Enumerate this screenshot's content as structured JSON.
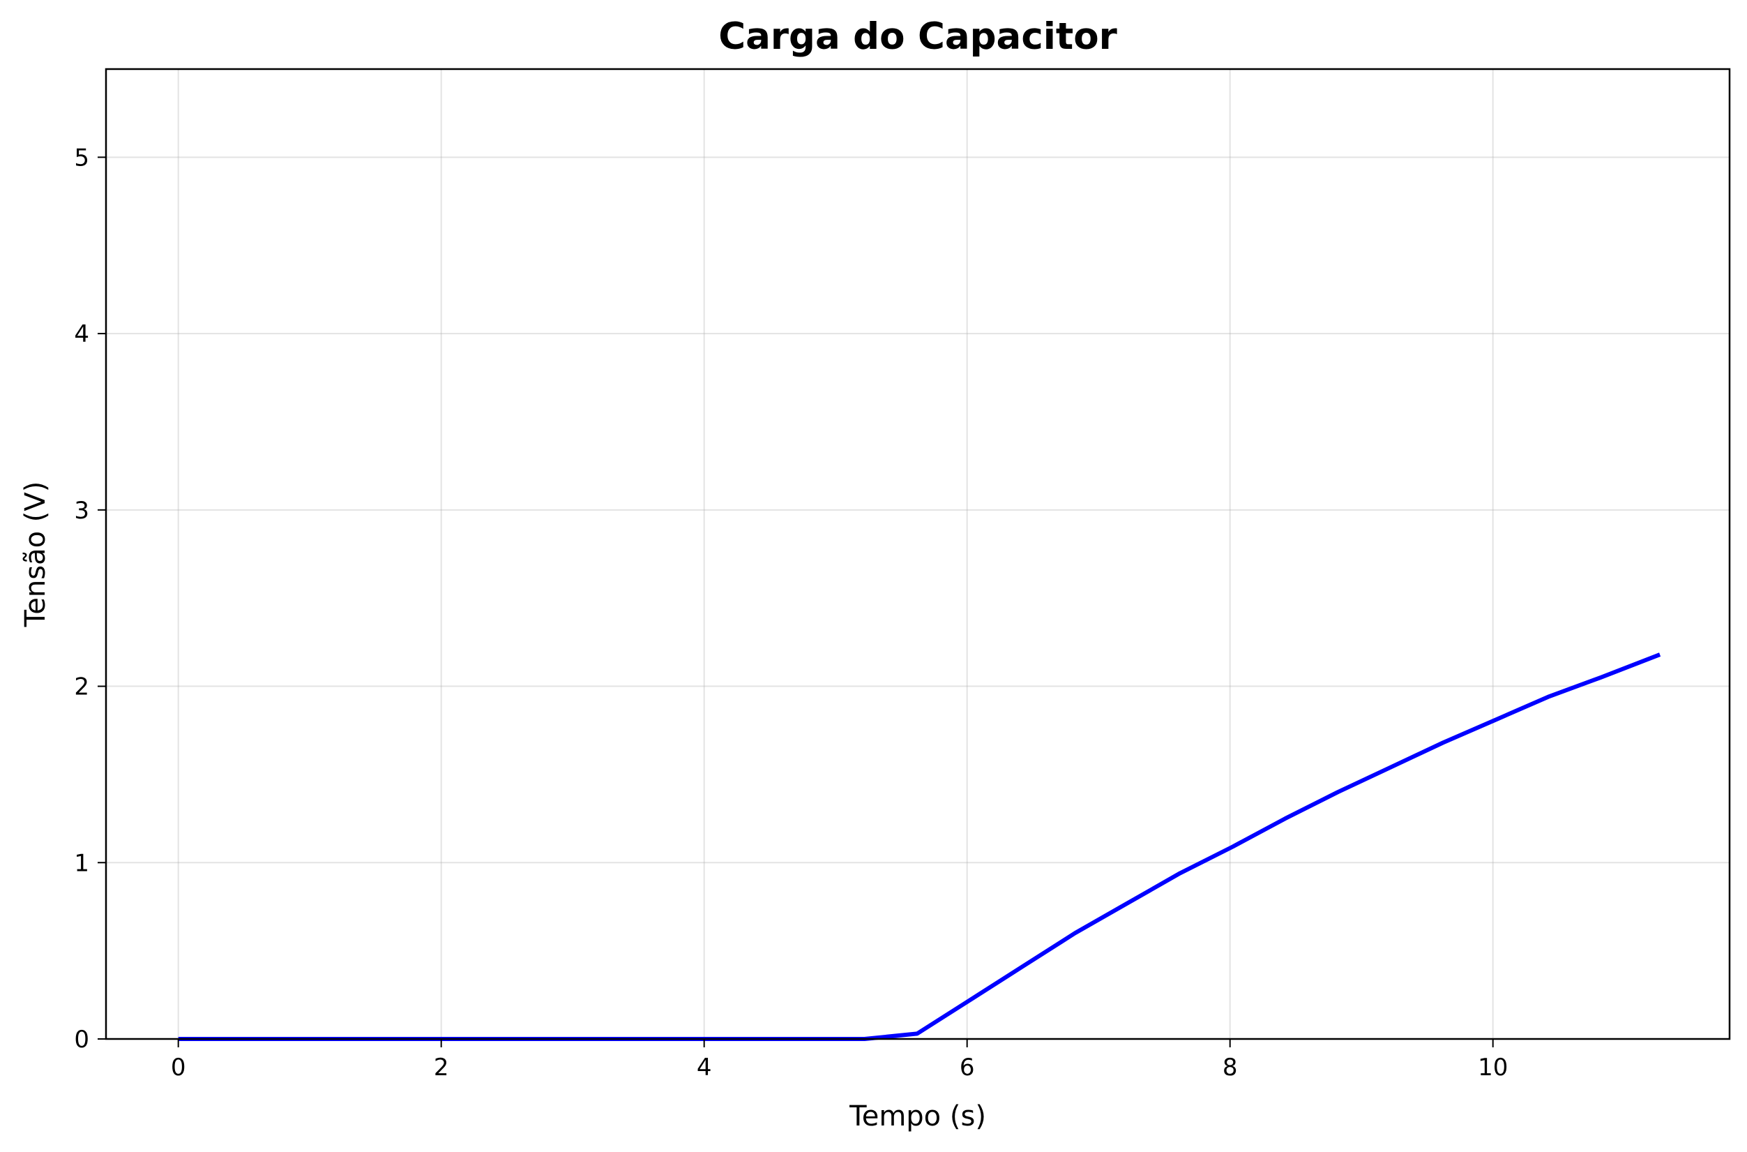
{
  "chart_data": {
    "type": "line",
    "title": "Carga do Capacitor",
    "xlabel": "Tempo (s)",
    "ylabel": "Tensão (V)",
    "xlim": [
      -0.55,
      11.8
    ],
    "ylim": [
      0,
      5.5
    ],
    "xticks": [
      0,
      2,
      4,
      6,
      8,
      10
    ],
    "yticks": [
      0,
      1,
      2,
      3,
      4,
      5
    ],
    "xtick_labels": [
      "0",
      "2",
      "4",
      "6",
      "8",
      "10"
    ],
    "ytick_labels": [
      "0",
      "1",
      "2",
      "3",
      "4",
      "5"
    ],
    "grid": true,
    "legend": "none",
    "series": [
      {
        "color": "#0000ff",
        "x": [
          0,
          5.22,
          5.62,
          6.0,
          6.42,
          6.82,
          7.22,
          7.62,
          8.02,
          8.42,
          8.82,
          9.22,
          9.62,
          10.02,
          10.42,
          10.82,
          11.27
        ],
        "y": [
          0,
          0,
          0.03,
          0.21,
          0.41,
          0.6,
          0.77,
          0.94,
          1.09,
          1.25,
          1.4,
          1.54,
          1.68,
          1.81,
          1.94,
          2.05,
          2.18
        ]
      }
    ]
  }
}
